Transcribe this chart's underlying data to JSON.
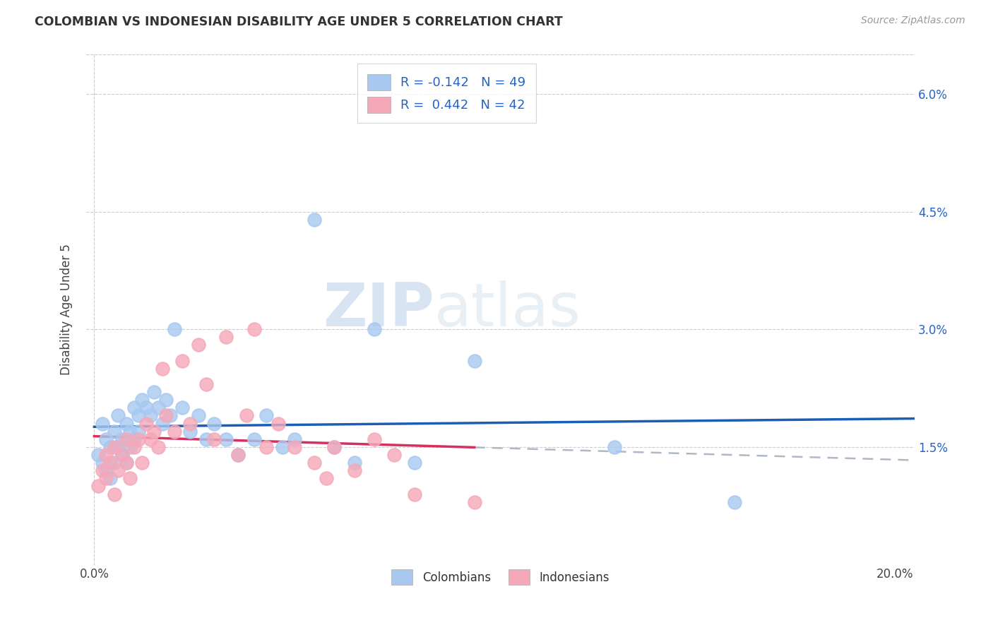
{
  "title": "COLOMBIAN VS INDONESIAN DISABILITY AGE UNDER 5 CORRELATION CHART",
  "source": "Source: ZipAtlas.com",
  "ylabel": "Disability Age Under 5",
  "ylim": [
    0.0,
    0.065
  ],
  "xlim": [
    -0.002,
    0.205
  ],
  "ytick_positions": [
    0.0,
    0.015,
    0.03,
    0.045,
    0.06
  ],
  "ytick_labels": [
    "",
    "1.5%",
    "3.0%",
    "4.5%",
    "6.0%"
  ],
  "xtick_positions": [
    0.0,
    0.05,
    0.1,
    0.15,
    0.2
  ],
  "xtick_labels": [
    "0.0%",
    "",
    "",
    "",
    "20.0%"
  ],
  "colombian_R": -0.142,
  "colombian_N": 49,
  "indonesian_R": 0.442,
  "indonesian_N": 42,
  "colombian_color": "#a8c8f0",
  "indonesian_color": "#f5a8b8",
  "colombian_line_color": "#1a5fb4",
  "indonesian_line_solid_color": "#d63060",
  "indonesian_line_dashed_color": "#b0b8c8",
  "watermark_zip": "ZIP",
  "watermark_atlas": "atlas",
  "colombians_x": [
    0.001,
    0.002,
    0.002,
    0.003,
    0.003,
    0.004,
    0.004,
    0.005,
    0.005,
    0.006,
    0.006,
    0.007,
    0.007,
    0.008,
    0.008,
    0.009,
    0.009,
    0.01,
    0.01,
    0.011,
    0.011,
    0.012,
    0.013,
    0.014,
    0.015,
    0.016,
    0.017,
    0.018,
    0.019,
    0.02,
    0.022,
    0.024,
    0.026,
    0.028,
    0.03,
    0.033,
    0.036,
    0.04,
    0.043,
    0.047,
    0.05,
    0.055,
    0.06,
    0.065,
    0.07,
    0.08,
    0.095,
    0.13,
    0.16
  ],
  "colombians_y": [
    0.014,
    0.013,
    0.018,
    0.012,
    0.016,
    0.015,
    0.011,
    0.013,
    0.017,
    0.015,
    0.019,
    0.014,
    0.016,
    0.013,
    0.018,
    0.015,
    0.017,
    0.016,
    0.02,
    0.017,
    0.019,
    0.021,
    0.02,
    0.019,
    0.022,
    0.02,
    0.018,
    0.021,
    0.019,
    0.03,
    0.02,
    0.017,
    0.019,
    0.016,
    0.018,
    0.016,
    0.014,
    0.016,
    0.019,
    0.015,
    0.016,
    0.044,
    0.015,
    0.013,
    0.03,
    0.013,
    0.026,
    0.015,
    0.008
  ],
  "indonesians_x": [
    0.001,
    0.002,
    0.003,
    0.003,
    0.004,
    0.005,
    0.005,
    0.006,
    0.007,
    0.008,
    0.008,
    0.009,
    0.01,
    0.011,
    0.012,
    0.013,
    0.014,
    0.015,
    0.016,
    0.017,
    0.018,
    0.02,
    0.022,
    0.024,
    0.026,
    0.028,
    0.03,
    0.033,
    0.036,
    0.038,
    0.04,
    0.043,
    0.046,
    0.05,
    0.055,
    0.058,
    0.06,
    0.065,
    0.07,
    0.075,
    0.08,
    0.095
  ],
  "indonesians_y": [
    0.01,
    0.012,
    0.011,
    0.014,
    0.013,
    0.009,
    0.015,
    0.012,
    0.014,
    0.013,
    0.016,
    0.011,
    0.015,
    0.016,
    0.013,
    0.018,
    0.016,
    0.017,
    0.015,
    0.025,
    0.019,
    0.017,
    0.026,
    0.018,
    0.028,
    0.023,
    0.016,
    0.029,
    0.014,
    0.019,
    0.03,
    0.015,
    0.018,
    0.015,
    0.013,
    0.011,
    0.015,
    0.012,
    0.016,
    0.014,
    0.009,
    0.008
  ]
}
